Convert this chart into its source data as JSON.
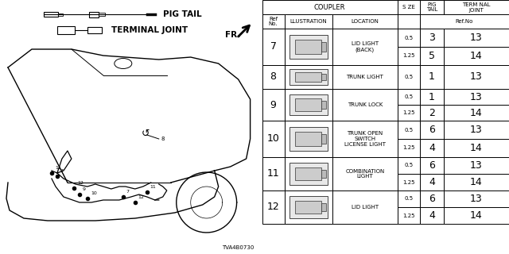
{
  "background_color": "#ffffff",
  "part_number": "TVA4B0730",
  "table": {
    "rows": [
      {
        "ref": "7",
        "location": "LID LIGHT\n(BACK)",
        "sub_rows": [
          {
            "size": "0.5",
            "pig_tail": "3",
            "terminal": "13"
          },
          {
            "size": "1.25",
            "pig_tail": "5",
            "terminal": "14"
          }
        ]
      },
      {
        "ref": "8",
        "location": "TRUNK LIGHT",
        "sub_rows": [
          {
            "size": "0.5",
            "pig_tail": "1",
            "terminal": "13"
          }
        ]
      },
      {
        "ref": "9",
        "location": "TRUNK LOCK",
        "sub_rows": [
          {
            "size": "0.5",
            "pig_tail": "1",
            "terminal": "13"
          },
          {
            "size": "1.25",
            "pig_tail": "2",
            "terminal": "14"
          }
        ]
      },
      {
        "ref": "10",
        "location": "TRUNK OPEN\nSWITCH\nLICENSE LIGHT",
        "sub_rows": [
          {
            "size": "0.5",
            "pig_tail": "6",
            "terminal": "13"
          },
          {
            "size": "1.25",
            "pig_tail": "4",
            "terminal": "14"
          }
        ]
      },
      {
        "ref": "11",
        "location": "COMBINATION\nLIGHT",
        "sub_rows": [
          {
            "size": "0.5",
            "pig_tail": "6",
            "terminal": "13"
          },
          {
            "size": "1.25",
            "pig_tail": "4",
            "terminal": "14"
          }
        ]
      },
      {
        "ref": "12",
        "location": "LID LIGHT",
        "sub_rows": [
          {
            "size": "0.5",
            "pig_tail": "6",
            "terminal": "13"
          },
          {
            "size": "1.25",
            "pig_tail": "4",
            "terminal": "14"
          }
        ]
      }
    ]
  }
}
